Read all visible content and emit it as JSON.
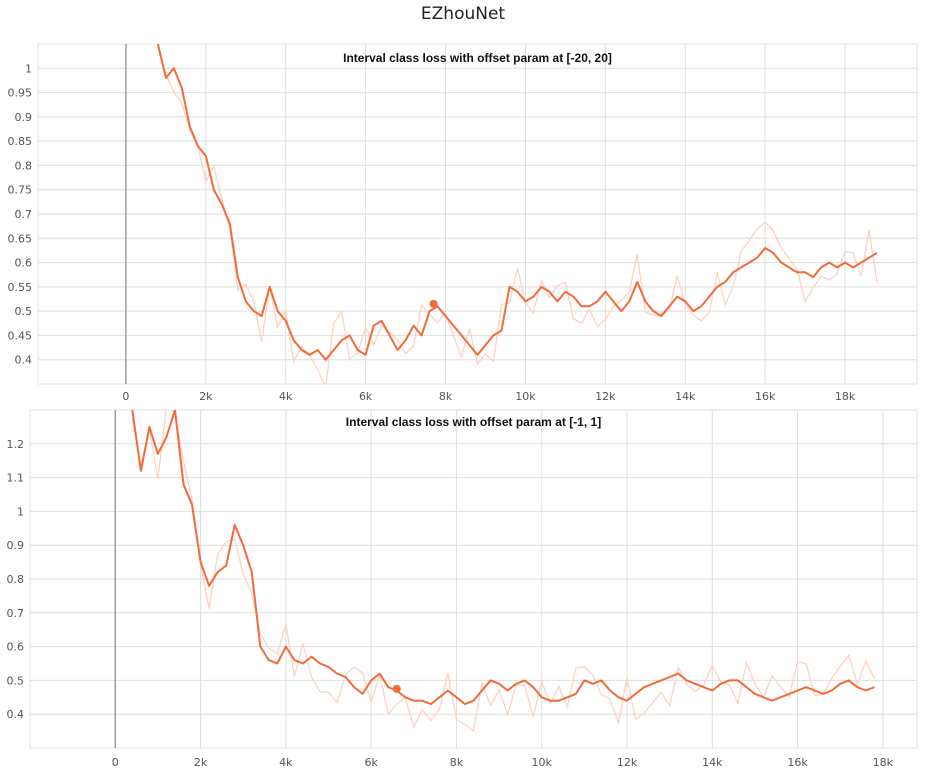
{
  "figure_title": "EZhouNet",
  "chart_data": [
    {
      "type": "line",
      "title": "Interval class loss with offset param at [-20, 20]",
      "xlabel": "",
      "ylabel": "",
      "xlim": [
        -2200,
        19800
      ],
      "ylim": [
        0.35,
        1.05
      ],
      "xticks": [
        0,
        2000,
        4000,
        6000,
        8000,
        10000,
        12000,
        14000,
        16000,
        18000
      ],
      "xtick_labels": [
        "0",
        "2k",
        "4k",
        "6k",
        "8k",
        "10k",
        "12k",
        "14k",
        "16k",
        "18k"
      ],
      "yticks": [
        0.4,
        0.45,
        0.5,
        0.55,
        0.6,
        0.65,
        0.7,
        0.75,
        0.8,
        0.85,
        0.9,
        0.95,
        1
      ],
      "ytick_labels": [
        "0.4",
        "0.45",
        "0.5",
        "0.55",
        "0.6",
        "0.65",
        "0.7",
        "0.75",
        "0.8",
        "0.85",
        "0.9",
        "0.95",
        "1"
      ],
      "grid": true,
      "colors": {
        "smoothed": "#f26b3a",
        "raw": "#fbd3c3"
      },
      "marker": {
        "x": 7700,
        "y": 0.515
      },
      "series": [
        {
          "x": [
            800,
            1000,
            1200,
            1400,
            1600,
            1800,
            2000,
            2200,
            2400,
            2600,
            2800,
            3000,
            3200,
            3400,
            3600,
            3800,
            4000,
            4200,
            4400,
            4600,
            4800,
            5000,
            5200,
            5400,
            5600,
            5800,
            6000,
            6200,
            6400,
            6600,
            6800,
            7000,
            7200,
            7400,
            7600,
            7800,
            8000,
            8200,
            8400,
            8600,
            8800,
            9000,
            9200,
            9400,
            9600,
            9800,
            10000,
            10200,
            10400,
            10600,
            10800,
            11000,
            11200,
            11400,
            11600,
            11800,
            12000,
            12200,
            12400,
            12600,
            12800,
            13000,
            13200,
            13400,
            13600,
            13800,
            14000,
            14200,
            14400,
            14600,
            14800,
            15000,
            15200,
            15400,
            15600,
            15800,
            16000,
            16200,
            16400,
            16600,
            16800,
            17000,
            17200,
            17400,
            17600,
            17800,
            18000,
            18200,
            18400,
            18600,
            18800
          ],
          "y": [
            1.05,
            0.98,
            1.0,
            0.96,
            0.88,
            0.84,
            0.82,
            0.75,
            0.72,
            0.68,
            0.57,
            0.52,
            0.5,
            0.49,
            0.55,
            0.5,
            0.48,
            0.44,
            0.42,
            0.41,
            0.42,
            0.4,
            0.42,
            0.44,
            0.45,
            0.42,
            0.41,
            0.47,
            0.48,
            0.45,
            0.42,
            0.44,
            0.47,
            0.45,
            0.5,
            0.51,
            0.49,
            0.47,
            0.45,
            0.43,
            0.41,
            0.43,
            0.45,
            0.46,
            0.55,
            0.54,
            0.52,
            0.53,
            0.55,
            0.54,
            0.52,
            0.54,
            0.53,
            0.51,
            0.51,
            0.52,
            0.54,
            0.52,
            0.5,
            0.52,
            0.56,
            0.52,
            0.5,
            0.49,
            0.51,
            0.53,
            0.52,
            0.5,
            0.51,
            0.53,
            0.55,
            0.56,
            0.58,
            0.59,
            0.6,
            0.61,
            0.63,
            0.62,
            0.6,
            0.59,
            0.58,
            0.58,
            0.57,
            0.59,
            0.6,
            0.59,
            0.6,
            0.59,
            0.6,
            0.61,
            0.62
          ]
        }
      ]
    },
    {
      "type": "line",
      "title": "Interval class loss with offset param at [-1, 1]",
      "xlabel": "",
      "ylabel": "",
      "xlim": [
        -2000,
        18800
      ],
      "ylim": [
        0.3,
        1.3
      ],
      "xticks": [
        0,
        2000,
        4000,
        6000,
        8000,
        10000,
        12000,
        14000,
        16000,
        18000
      ],
      "xtick_labels": [
        "0",
        "2k",
        "4k",
        "6k",
        "8k",
        "10k",
        "12k",
        "14k",
        "16k",
        "18k"
      ],
      "yticks": [
        0.4,
        0.5,
        0.6,
        0.7,
        0.8,
        0.9,
        1,
        1.1,
        1.2
      ],
      "ytick_labels": [
        "0.4",
        "0.5",
        "0.6",
        "0.7",
        "0.8",
        "0.9",
        "1",
        "1.1",
        "1.2"
      ],
      "grid": true,
      "colors": {
        "smoothed": "#f26b3a",
        "raw": "#fbd3c3"
      },
      "marker": {
        "x": 6600,
        "y": 0.475
      },
      "series": [
        {
          "x": [
            400,
            600,
            800,
            1000,
            1200,
            1400,
            1600,
            1800,
            2000,
            2200,
            2400,
            2600,
            2800,
            3000,
            3200,
            3400,
            3600,
            3800,
            4000,
            4200,
            4400,
            4600,
            4800,
            5000,
            5200,
            5400,
            5600,
            5800,
            6000,
            6200,
            6400,
            6600,
            6800,
            7000,
            7200,
            7400,
            7600,
            7800,
            8000,
            8200,
            8400,
            8600,
            8800,
            9000,
            9200,
            9400,
            9600,
            9800,
            10000,
            10200,
            10400,
            10600,
            10800,
            11000,
            11200,
            11400,
            11600,
            11800,
            12000,
            12200,
            12400,
            12600,
            12800,
            13000,
            13200,
            13400,
            13600,
            13800,
            14000,
            14200,
            14400,
            14600,
            14800,
            15000,
            15200,
            15400,
            15600,
            15800,
            16000,
            16200,
            16400,
            16600,
            16800,
            17000,
            17200,
            17400,
            17600,
            17800
          ],
          "y": [
            1.3,
            1.12,
            1.25,
            1.17,
            1.22,
            1.3,
            1.08,
            1.02,
            0.85,
            0.78,
            0.82,
            0.84,
            0.96,
            0.9,
            0.82,
            0.6,
            0.56,
            0.55,
            0.6,
            0.56,
            0.55,
            0.57,
            0.55,
            0.54,
            0.52,
            0.51,
            0.48,
            0.46,
            0.5,
            0.52,
            0.48,
            0.47,
            0.45,
            0.44,
            0.44,
            0.43,
            0.45,
            0.47,
            0.45,
            0.43,
            0.44,
            0.47,
            0.5,
            0.49,
            0.47,
            0.49,
            0.5,
            0.48,
            0.45,
            0.44,
            0.44,
            0.45,
            0.46,
            0.5,
            0.49,
            0.5,
            0.47,
            0.45,
            0.44,
            0.46,
            0.48,
            0.49,
            0.5,
            0.51,
            0.52,
            0.5,
            0.49,
            0.48,
            0.47,
            0.49,
            0.5,
            0.5,
            0.48,
            0.46,
            0.45,
            0.44,
            0.45,
            0.46,
            0.47,
            0.48,
            0.47,
            0.46,
            0.47,
            0.49,
            0.5,
            0.48,
            0.47,
            0.48
          ]
        }
      ]
    }
  ]
}
